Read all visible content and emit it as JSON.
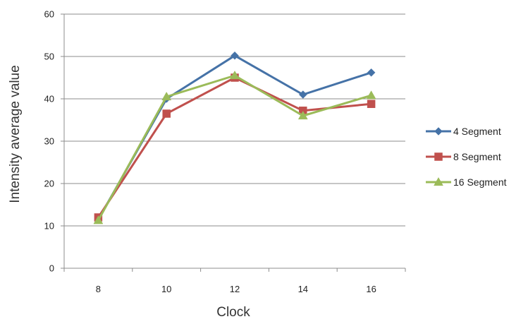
{
  "chart_data": {
    "type": "line",
    "title": "",
    "xlabel": "Clock",
    "ylabel": "Intensity average value",
    "categories": [
      "8",
      "10",
      "12",
      "14",
      "16"
    ],
    "ylim": [
      0,
      60
    ],
    "yticks": [
      "0",
      "10",
      "20",
      "30",
      "40",
      "50",
      "60"
    ],
    "grid": "horizontal",
    "legend_position": "right",
    "series": [
      {
        "name": "4 Segment",
        "values": [
          11.5,
          40.0,
          50.2,
          41.0,
          46.2
        ],
        "color": "#4572a7",
        "marker": "diamond"
      },
      {
        "name": "8 Segment",
        "values": [
          12.0,
          36.5,
          45.0,
          37.2,
          38.8
        ],
        "color": "#c0504d",
        "marker": "square"
      },
      {
        "name": "16 Segment",
        "values": [
          11.3,
          40.5,
          45.5,
          36.0,
          40.8
        ],
        "color": "#9bbb59",
        "marker": "triangle"
      }
    ]
  }
}
